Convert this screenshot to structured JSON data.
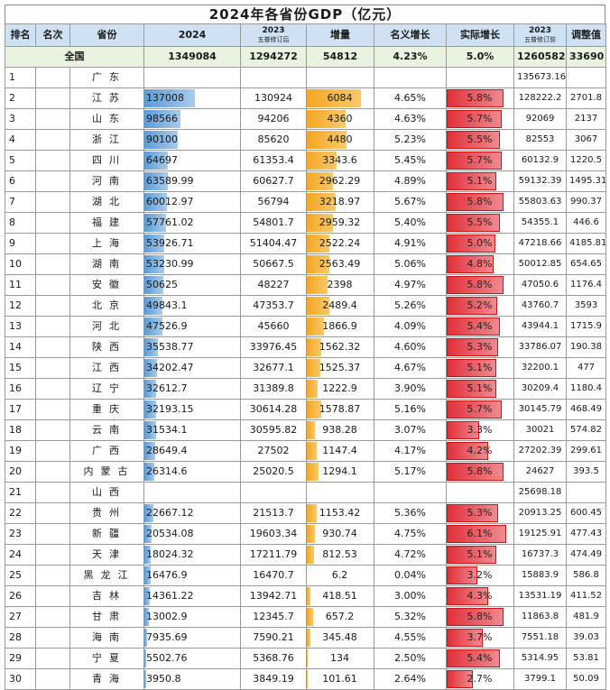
{
  "title": "2024年各省份GDP（亿元）",
  "headers": {
    "rank": "排名",
    "place": "名次",
    "province": "省份",
    "gdp2024": "2024",
    "gdp2023_year": "2023",
    "gdp2023_sub": "五普修订后",
    "increase": "增量",
    "nominal": "名义增长",
    "real": "实际增长",
    "prev_year": "2023",
    "prev_sub": "五普修订前",
    "adjust": "调整值"
  },
  "total": {
    "label": "全国",
    "gdp2024": "1349084",
    "gdp2023": "1294272",
    "increase": "54812",
    "nominal": "4.23%",
    "real": "5.0%",
    "prev": "1260582",
    "adjust": "33690"
  },
  "rows": [
    {
      "rank": "1",
      "province": "广东",
      "gdp2024": "",
      "gdp2023": "",
      "increase": "",
      "nominal": "",
      "real": "",
      "prev": "135673.16",
      "adjust": "",
      "gdp_frac": 0,
      "inc_frac": 0,
      "real_frac": 0
    },
    {
      "rank": "2",
      "province": "江苏",
      "gdp2024": "137008",
      "gdp2023": "130924",
      "increase": "6084",
      "nominal": "4.65%",
      "real": "5.8%",
      "prev": "128222.2",
      "adjust": "2701.8",
      "gdp_frac": 1.0,
      "inc_frac": 1.0,
      "real_frac": 0.95
    },
    {
      "rank": "3",
      "province": "山东",
      "gdp2024": "98566",
      "gdp2023": "94206",
      "increase": "4360",
      "nominal": "4.63%",
      "real": "5.7%",
      "prev": "92069",
      "adjust": "2137",
      "gdp_frac": 0.72,
      "inc_frac": 0.72,
      "real_frac": 0.93
    },
    {
      "rank": "4",
      "province": "浙江",
      "gdp2024": "90100",
      "gdp2023": "85620",
      "increase": "4480",
      "nominal": "5.23%",
      "real": "5.5%",
      "prev": "82553",
      "adjust": "3067",
      "gdp_frac": 0.66,
      "inc_frac": 0.74,
      "real_frac": 0.9
    },
    {
      "rank": "5",
      "province": "四川",
      "gdp2024": "64697",
      "gdp2023": "61353.4",
      "increase": "3343.6",
      "nominal": "5.45%",
      "real": "5.7%",
      "prev": "60132.9",
      "adjust": "1220.5",
      "gdp_frac": 0.47,
      "inc_frac": 0.55,
      "real_frac": 0.93
    },
    {
      "rank": "6",
      "province": "河南",
      "gdp2024": "63589.99",
      "gdp2023": "60627.7",
      "increase": "2962.29",
      "nominal": "4.89%",
      "real": "5.1%",
      "prev": "59132.39",
      "adjust": "1495.31",
      "gdp_frac": 0.46,
      "inc_frac": 0.49,
      "real_frac": 0.84
    },
    {
      "rank": "7",
      "province": "湖北",
      "gdp2024": "60012.97",
      "gdp2023": "56794",
      "increase": "3218.97",
      "nominal": "5.67%",
      "real": "5.8%",
      "prev": "55803.63",
      "adjust": "990.37",
      "gdp_frac": 0.44,
      "inc_frac": 0.53,
      "real_frac": 0.95
    },
    {
      "rank": "8",
      "province": "福建",
      "gdp2024": "57761.02",
      "gdp2023": "54801.7",
      "increase": "2959.32",
      "nominal": "5.40%",
      "real": "5.5%",
      "prev": "54355.1",
      "adjust": "446.6",
      "gdp_frac": 0.42,
      "inc_frac": 0.49,
      "real_frac": 0.9
    },
    {
      "rank": "9",
      "province": "上海",
      "gdp2024": "53926.71",
      "gdp2023": "51404.47",
      "increase": "2522.24",
      "nominal": "4.91%",
      "real": "5.0%",
      "prev": "47218.66",
      "adjust": "4185.81",
      "gdp_frac": 0.39,
      "inc_frac": 0.41,
      "real_frac": 0.82
    },
    {
      "rank": "10",
      "province": "湖南",
      "gdp2024": "53230.99",
      "gdp2023": "50667.5",
      "increase": "2563.49",
      "nominal": "5.06%",
      "real": "4.8%",
      "prev": "50012.85",
      "adjust": "654.65",
      "gdp_frac": 0.39,
      "inc_frac": 0.42,
      "real_frac": 0.79
    },
    {
      "rank": "11",
      "province": "安徽",
      "gdp2024": "50625",
      "gdp2023": "48227",
      "increase": "2398",
      "nominal": "4.97%",
      "real": "5.8%",
      "prev": "47050.6",
      "adjust": "1176.4",
      "gdp_frac": 0.37,
      "inc_frac": 0.39,
      "real_frac": 0.95
    },
    {
      "rank": "12",
      "province": "北京",
      "gdp2024": "49843.1",
      "gdp2023": "47353.7",
      "increase": "2489.4",
      "nominal": "5.26%",
      "real": "5.2%",
      "prev": "43760.7",
      "adjust": "3593",
      "gdp_frac": 0.36,
      "inc_frac": 0.41,
      "real_frac": 0.85
    },
    {
      "rank": "13",
      "province": "河北",
      "gdp2024": "47526.9",
      "gdp2023": "45660",
      "increase": "1866.9",
      "nominal": "4.09%",
      "real": "5.4%",
      "prev": "43944.1",
      "adjust": "1715.9",
      "gdp_frac": 0.35,
      "inc_frac": 0.31,
      "real_frac": 0.89
    },
    {
      "rank": "14",
      "province": "陕西",
      "gdp2024": "35538.77",
      "gdp2023": "33976.45",
      "increase": "1562.32",
      "nominal": "4.60%",
      "real": "5.3%",
      "prev": "33786.07",
      "adjust": "190.38",
      "gdp_frac": 0.26,
      "inc_frac": 0.26,
      "real_frac": 0.87
    },
    {
      "rank": "15",
      "province": "江西",
      "gdp2024": "34202.47",
      "gdp2023": "32677.1",
      "increase": "1525.37",
      "nominal": "4.67%",
      "real": "5.1%",
      "prev": "32200.1",
      "adjust": "477",
      "gdp_frac": 0.25,
      "inc_frac": 0.25,
      "real_frac": 0.84
    },
    {
      "rank": "16",
      "province": "辽宁",
      "gdp2024": "32612.7",
      "gdp2023": "31389.8",
      "increase": "1222.9",
      "nominal": "3.90%",
      "real": "5.1%",
      "prev": "30209.4",
      "adjust": "1180.4",
      "gdp_frac": 0.24,
      "inc_frac": 0.2,
      "real_frac": 0.84
    },
    {
      "rank": "17",
      "province": "重庆",
      "gdp2024": "32193.15",
      "gdp2023": "30614.28",
      "increase": "1578.87",
      "nominal": "5.16%",
      "real": "5.7%",
      "prev": "30145.79",
      "adjust": "468.49",
      "gdp_frac": 0.23,
      "inc_frac": 0.26,
      "real_frac": 0.93
    },
    {
      "rank": "18",
      "province": "云南",
      "gdp2024": "31534.1",
      "gdp2023": "30595.82",
      "increase": "938.28",
      "nominal": "3.07%",
      "real": "3.3%",
      "prev": "30021",
      "adjust": "574.82",
      "gdp_frac": 0.23,
      "inc_frac": 0.15,
      "real_frac": 0.54
    },
    {
      "rank": "19",
      "province": "广西",
      "gdp2024": "28649.4",
      "gdp2023": "27502",
      "increase": "1147.4",
      "nominal": "4.17%",
      "real": "4.2%",
      "prev": "27202.39",
      "adjust": "299.61",
      "gdp_frac": 0.21,
      "inc_frac": 0.19,
      "real_frac": 0.69
    },
    {
      "rank": "20",
      "province": "内蒙古",
      "gdp2024": "26314.6",
      "gdp2023": "25020.5",
      "increase": "1294.1",
      "nominal": "5.17%",
      "real": "5.8%",
      "prev": "24627",
      "adjust": "393.5",
      "gdp_frac": 0.19,
      "inc_frac": 0.21,
      "real_frac": 0.95
    },
    {
      "rank": "21",
      "province": "山西",
      "gdp2024": "",
      "gdp2023": "",
      "increase": "",
      "nominal": "",
      "real": "",
      "prev": "25698.18",
      "adjust": "",
      "gdp_frac": 0,
      "inc_frac": 0,
      "real_frac": 0
    },
    {
      "rank": "22",
      "province": "贵州",
      "gdp2024": "22667.12",
      "gdp2023": "21513.7",
      "increase": "1153.42",
      "nominal": "5.36%",
      "real": "5.3%",
      "prev": "20913.25",
      "adjust": "600.45",
      "gdp_frac": 0.17,
      "inc_frac": 0.19,
      "real_frac": 0.87
    },
    {
      "rank": "23",
      "province": "新疆",
      "gdp2024": "20534.08",
      "gdp2023": "19603.34",
      "increase": "930.74",
      "nominal": "4.75%",
      "real": "6.1%",
      "prev": "19125.91",
      "adjust": "477.43",
      "gdp_frac": 0.15,
      "inc_frac": 0.15,
      "real_frac": 1.0
    },
    {
      "rank": "24",
      "province": "天津",
      "gdp2024": "18024.32",
      "gdp2023": "17211.79",
      "increase": "812.53",
      "nominal": "4.72%",
      "real": "5.1%",
      "prev": "16737.3",
      "adjust": "474.49",
      "gdp_frac": 0.13,
      "inc_frac": 0.13,
      "real_frac": 0.84
    },
    {
      "rank": "25",
      "province": "黑龙江",
      "gdp2024": "16476.9",
      "gdp2023": "16470.7",
      "increase": "6.2",
      "nominal": "0.04%",
      "real": "3.2%",
      "prev": "15883.9",
      "adjust": "586.8",
      "gdp_frac": 0.12,
      "inc_frac": 0.0,
      "real_frac": 0.52
    },
    {
      "rank": "26",
      "province": "吉林",
      "gdp2024": "14361.22",
      "gdp2023": "13942.71",
      "increase": "418.51",
      "nominal": "3.00%",
      "real": "4.3%",
      "prev": "13531.19",
      "adjust": "411.52",
      "gdp_frac": 0.1,
      "inc_frac": 0.07,
      "real_frac": 0.7
    },
    {
      "rank": "27",
      "province": "甘肃",
      "gdp2024": "13002.9",
      "gdp2023": "12345.7",
      "increase": "657.2",
      "nominal": "5.32%",
      "real": "5.8%",
      "prev": "11863.8",
      "adjust": "481.9",
      "gdp_frac": 0.09,
      "inc_frac": 0.11,
      "real_frac": 0.95
    },
    {
      "rank": "28",
      "province": "海南",
      "gdp2024": "7935.69",
      "gdp2023": "7590.21",
      "increase": "345.48",
      "nominal": "4.55%",
      "real": "3.7%",
      "prev": "7551.18",
      "adjust": "39.03",
      "gdp_frac": 0.06,
      "inc_frac": 0.06,
      "real_frac": 0.61
    },
    {
      "rank": "29",
      "province": "宁夏",
      "gdp2024": "5502.76",
      "gdp2023": "5368.76",
      "increase": "134",
      "nominal": "2.50%",
      "real": "5.4%",
      "prev": "5314.95",
      "adjust": "53.81",
      "gdp_frac": 0.04,
      "inc_frac": 0.02,
      "real_frac": 0.89
    },
    {
      "rank": "30",
      "province": "青海",
      "gdp2024": "3950.8",
      "gdp2023": "3849.19",
      "increase": "101.61",
      "nominal": "2.64%",
      "real": "2.7%",
      "prev": "3799.1",
      "adjust": "50.09",
      "gdp_frac": 0.03,
      "inc_frac": 0.02,
      "real_frac": 0.44
    }
  ]
}
